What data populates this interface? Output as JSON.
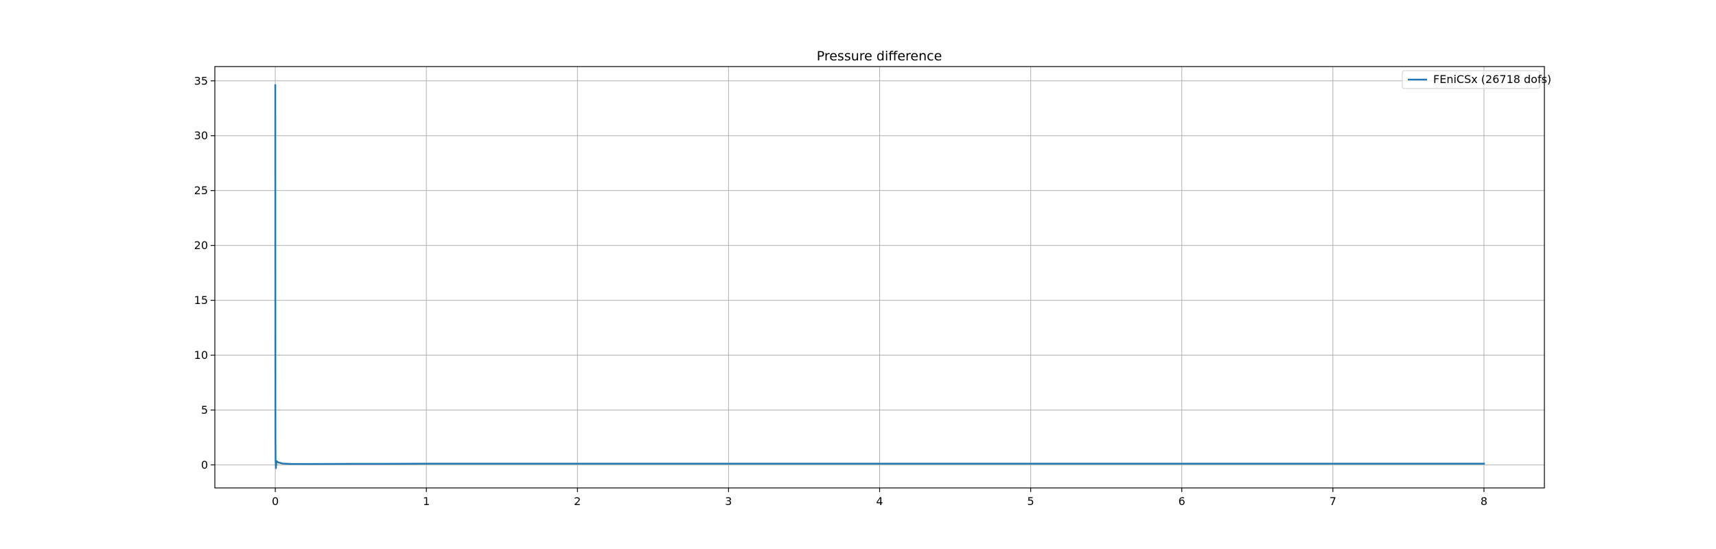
{
  "chart_data": {
    "type": "line",
    "title": "Pressure difference",
    "xlabel": "",
    "ylabel": "",
    "xlim": [
      -0.4,
      8.4
    ],
    "ylim": [
      -2.1,
      36.3
    ],
    "xticks": [
      0,
      1,
      2,
      3,
      4,
      5,
      6,
      7,
      8
    ],
    "yticks": [
      0,
      5,
      10,
      15,
      20,
      25,
      30,
      35
    ],
    "xtick_labels": [
      "0",
      "1",
      "2",
      "3",
      "4",
      "5",
      "6",
      "7",
      "8"
    ],
    "ytick_labels": [
      "0",
      "5",
      "10",
      "15",
      "20",
      "25",
      "30",
      "35"
    ],
    "grid": true,
    "legend_position": "upper right",
    "series": [
      {
        "name": "FEniCSx (26718 dofs)",
        "color": "#1f77b4",
        "x": [
          0.0,
          0.0005,
          0.001,
          0.002,
          0.004,
          0.008,
          0.02,
          0.05,
          0.1,
          0.2,
          0.4,
          0.7,
          1.0,
          2.0,
          3.0,
          4.0,
          5.0,
          6.0,
          7.0,
          8.0
        ],
        "y": [
          34.6,
          12.0,
          2.5,
          0.4,
          -0.3,
          0.35,
          0.22,
          0.12,
          0.09,
          0.08,
          0.09,
          0.1,
          0.11,
          0.11,
          0.11,
          0.11,
          0.11,
          0.11,
          0.11,
          0.11
        ]
      }
    ]
  }
}
